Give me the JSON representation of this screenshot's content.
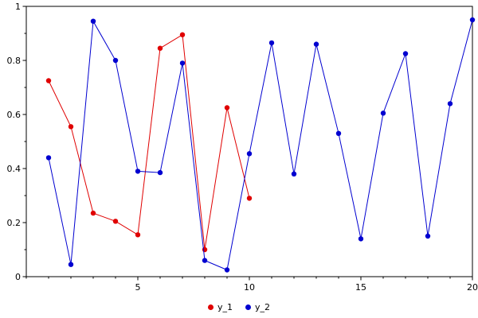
{
  "chart_data": {
    "type": "line",
    "title": "",
    "xlabel": "",
    "ylabel": "",
    "xlim": [
      0,
      20
    ],
    "ylim": [
      0,
      1
    ],
    "grid": false,
    "legend_position": "bottom-center",
    "x_ticks": {
      "values": [
        5,
        10,
        15,
        20
      ],
      "labels": [
        "5",
        "10",
        "15",
        "20"
      ],
      "minor_step": 1
    },
    "y_ticks": {
      "values": [
        0,
        0.2,
        0.4,
        0.6,
        0.8,
        1
      ],
      "labels": [
        "0",
        "0.2",
        "0.4",
        "0.6",
        "0.8",
        "1"
      ],
      "minor_step": 0.1
    },
    "series": [
      {
        "name": "y_1",
        "color": "#e00000",
        "marker": "circle",
        "x": [
          1,
          2,
          3,
          4,
          5,
          6,
          7,
          8,
          9,
          10
        ],
        "y": [
          0.725,
          0.555,
          0.235,
          0.205,
          0.155,
          0.845,
          0.895,
          0.1,
          0.625,
          0.29
        ]
      },
      {
        "name": "y_2",
        "color": "#0000d0",
        "marker": "circle",
        "x": [
          1,
          2,
          3,
          4,
          5,
          6,
          7,
          8,
          9,
          10,
          11,
          12,
          13,
          14,
          15,
          16,
          17,
          18,
          19,
          20
        ],
        "y": [
          0.44,
          0.045,
          0.945,
          0.8,
          0.39,
          0.385,
          0.79,
          0.06,
          0.025,
          0.455,
          0.865,
          0.38,
          0.86,
          0.53,
          0.14,
          0.605,
          0.825,
          0.15,
          0.64,
          0.95
        ]
      }
    ]
  }
}
